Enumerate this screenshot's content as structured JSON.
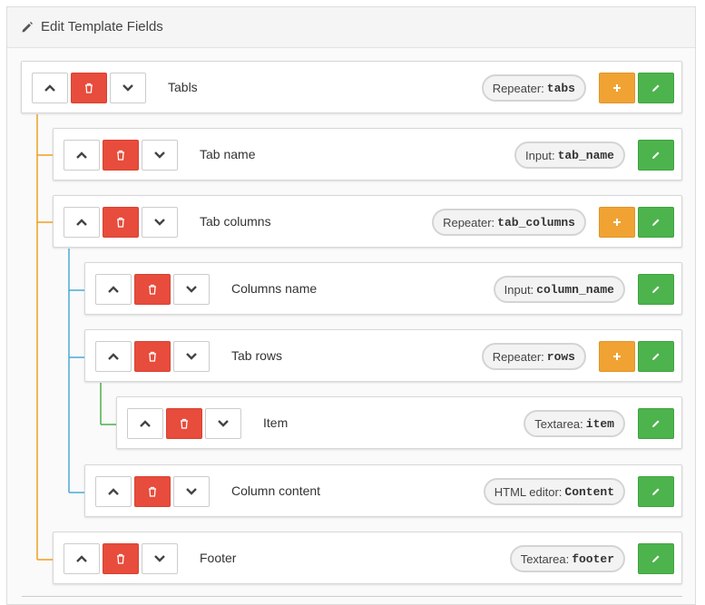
{
  "panel": {
    "title": "Edit Template Fields"
  },
  "colors": {
    "tree_level1": "#f0a020",
    "tree_level2": "#4aa9d6",
    "tree_level3": "#4cae4c",
    "delete": "#e74c3c",
    "add": "#f0a333",
    "edit": "#4db34d"
  },
  "fields": [
    {
      "label": "Tabls",
      "type": "Repeater:",
      "name": "tabs",
      "has_add": true
    },
    {
      "label": "Tab name",
      "type": "Input:",
      "name": "tab_name",
      "has_add": false
    },
    {
      "label": "Tab columns",
      "type": "Repeater:",
      "name": "tab_columns",
      "has_add": true
    },
    {
      "label": "Columns name",
      "type": "Input:",
      "name": "column_name",
      "has_add": false
    },
    {
      "label": "Tab rows",
      "type": "Repeater:",
      "name": "rows",
      "has_add": true
    },
    {
      "label": "Item",
      "type": "Textarea:",
      "name": "item",
      "has_add": false
    },
    {
      "label": "Column content",
      "type": "HTML editor:",
      "name": "Content",
      "has_add": false
    },
    {
      "label": "Footer",
      "type": "Textarea:",
      "name": "footer",
      "has_add": false
    }
  ]
}
